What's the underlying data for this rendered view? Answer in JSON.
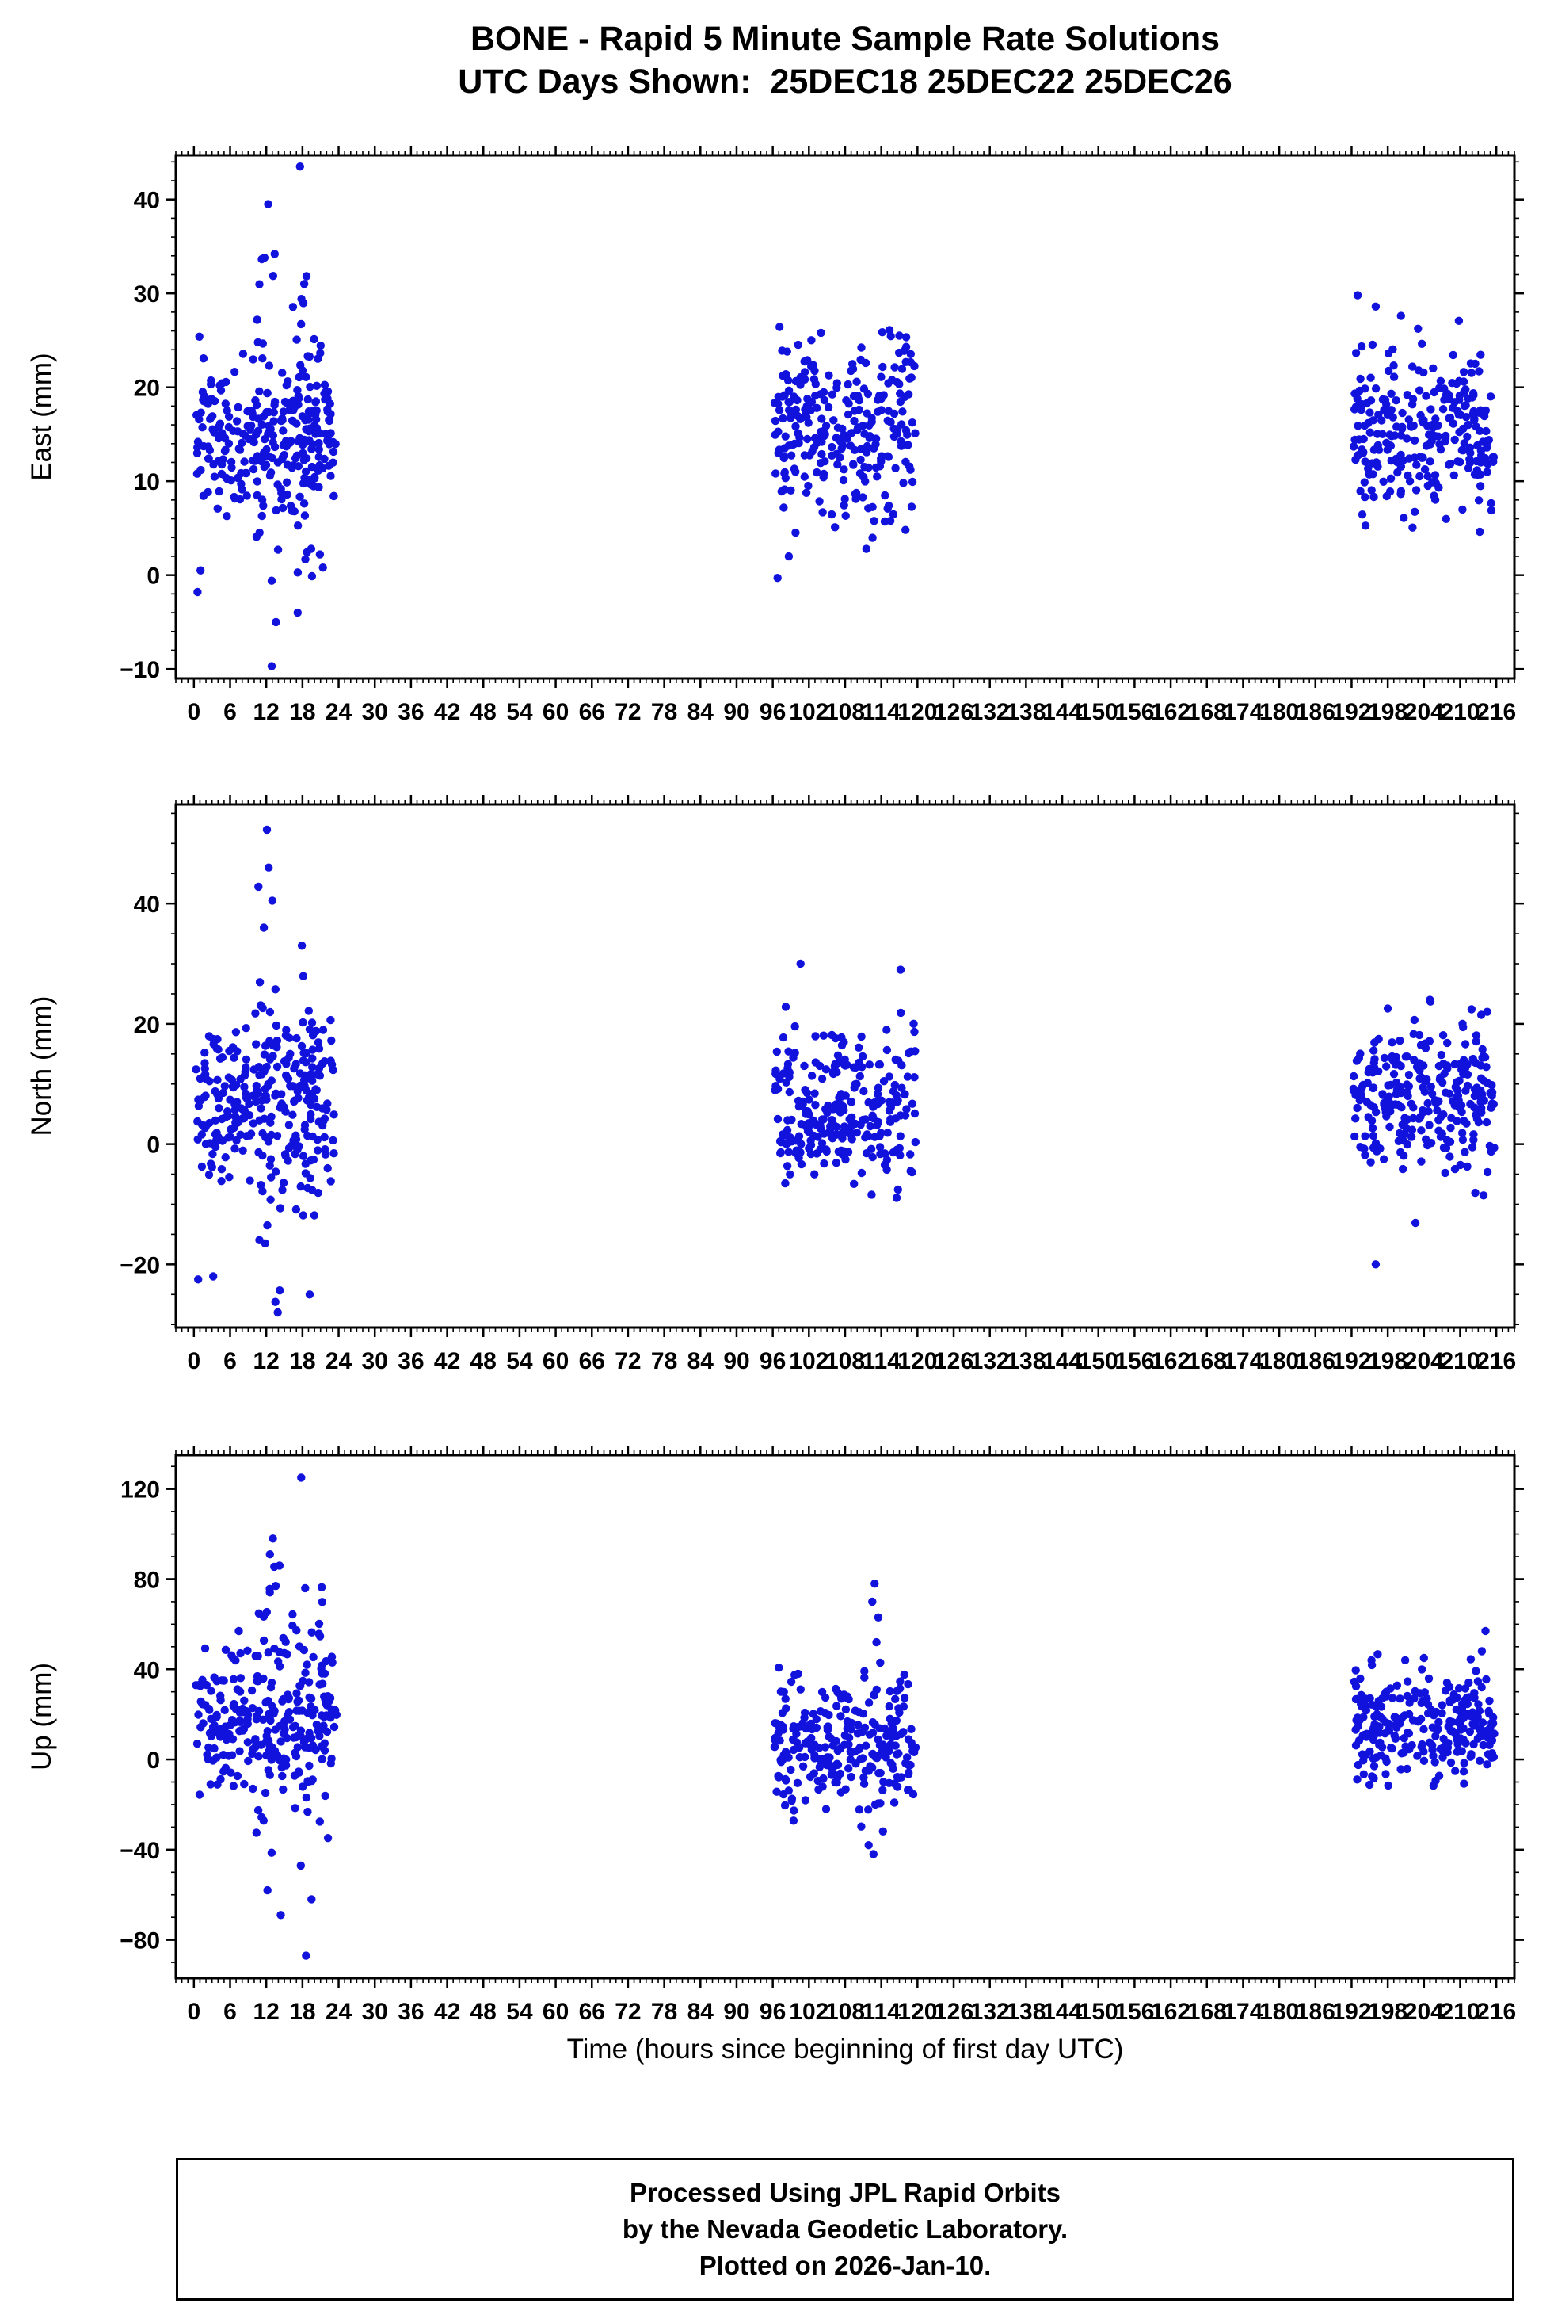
{
  "title": {
    "line1": "BONE - Rapid 5 Minute Sample Rate Solutions",
    "line2": "UTC Days Shown:  25DEC18 25DEC22 25DEC26"
  },
  "xaxis": {
    "label": "Time (hours since beginning of first day UTC)",
    "ticks": [
      0,
      6,
      12,
      18,
      24,
      30,
      36,
      42,
      48,
      54,
      60,
      66,
      72,
      78,
      84,
      90,
      96,
      102,
      108,
      114,
      120,
      126,
      132,
      138,
      144,
      150,
      156,
      162,
      168,
      174,
      180,
      186,
      192,
      198,
      204,
      210,
      216
    ],
    "minor_step": 1,
    "range": [
      -3,
      219
    ]
  },
  "footer": {
    "line1": "Processed Using JPL Rapid Orbits",
    "line2": "by the Nevada Geodetic Laboratory.",
    "line3": "Plotted on 2026-Jan-10."
  },
  "style": {
    "dot_color": "#1212dd",
    "dot_radius": 5.2,
    "axis_color": "#000000",
    "background": "#ffffff"
  },
  "chart_data": [
    {
      "type": "scatter",
      "series_name": "East",
      "ylabel": "East (mm)",
      "ylim": [
        -11,
        44.7
      ],
      "yticks": [
        -10,
        0,
        10,
        20,
        30,
        40
      ],
      "y_minor_step": 2,
      "xlim": [
        -3,
        219
      ],
      "seed": 11,
      "clusters": [
        {
          "x0": 0.3,
          "x1": 23.7,
          "n": 250,
          "mean": 14.5,
          "std": 4.4,
          "ymin": -2.5,
          "ymax": 27
        },
        {
          "x0": 10.2,
          "x1": 14.3,
          "n": 26,
          "mean": 17,
          "std": 10,
          "ymin": -10,
          "ymax": 40
        },
        {
          "x0": 16.3,
          "x1": 20.3,
          "n": 26,
          "mean": 15,
          "std": 10,
          "ymin": -8,
          "ymax": 43.5
        },
        {
          "x0": 96.3,
          "x1": 119.7,
          "n": 260,
          "mean": 15,
          "std": 4.8,
          "ymin": -0.5,
          "ymax": 26.5
        },
        {
          "x0": 192.3,
          "x1": 215.7,
          "n": 260,
          "mean": 15.2,
          "std": 4.6,
          "ymin": 4,
          "ymax": 30
        }
      ],
      "extra_points": [
        [
          12.3,
          39.5
        ],
        [
          13.4,
          34.2
        ],
        [
          11.7,
          33.8
        ],
        [
          17.6,
          43.5
        ],
        [
          18.3,
          31
        ],
        [
          12.9,
          -9.7
        ],
        [
          13.6,
          -5
        ],
        [
          17.2,
          -4
        ],
        [
          0.6,
          -1.8
        ],
        [
          1.1,
          0.5
        ],
        [
          20.9,
          2.2
        ],
        [
          21.4,
          0.8
        ],
        [
          96.8,
          -0.3
        ],
        [
          104,
          25.8
        ],
        [
          117,
          25.5
        ],
        [
          193,
          29.8
        ],
        [
          196,
          28.6
        ]
      ]
    },
    {
      "type": "scatter",
      "series_name": "North",
      "ylabel": "North (mm)",
      "ylim": [
        -30.5,
        56.5
      ],
      "yticks": [
        -20,
        0,
        20,
        40
      ],
      "y_minor_step": 5,
      "xlim": [
        -3,
        219
      ],
      "seed": 22,
      "clusters": [
        {
          "x0": 0.3,
          "x1": 23.7,
          "n": 250,
          "mean": 7,
          "std": 7,
          "ymin": -14,
          "ymax": 22
        },
        {
          "x0": 10.2,
          "x1": 14.5,
          "n": 26,
          "mean": 8,
          "std": 18,
          "ymin": -28,
          "ymax": 52
        },
        {
          "x0": 16.3,
          "x1": 20.8,
          "n": 24,
          "mean": 2,
          "std": 15,
          "ymin": -31,
          "ymax": 33
        },
        {
          "x0": 96.3,
          "x1": 119.7,
          "n": 260,
          "mean": 6,
          "std": 6.5,
          "ymin": -13,
          "ymax": 24
        },
        {
          "x0": 192.3,
          "x1": 215.7,
          "n": 260,
          "mean": 8,
          "std": 6,
          "ymin": -18,
          "ymax": 24
        }
      ],
      "extra_points": [
        [
          12.1,
          52.3
        ],
        [
          12.4,
          46
        ],
        [
          13,
          40.5
        ],
        [
          11.6,
          36
        ],
        [
          17.9,
          33
        ],
        [
          13.9,
          -28
        ],
        [
          13.4,
          -31.2
        ],
        [
          19.2,
          -25
        ],
        [
          0.7,
          -22.5
        ],
        [
          3.2,
          -22
        ],
        [
          100.6,
          30
        ],
        [
          117.2,
          29
        ],
        [
          196,
          -20
        ],
        [
          213.5,
          21.5
        ],
        [
          205,
          24
        ],
        [
          214.5,
          22
        ]
      ]
    },
    {
      "type": "scatter",
      "series_name": "Up",
      "ylabel": "Up (mm)",
      "ylim": [
        -97,
        135
      ],
      "yticks": [
        -80,
        -40,
        0,
        40,
        80,
        120
      ],
      "y_minor_step": 10,
      "xlim": [
        -3,
        219
      ],
      "seed": 33,
      "clusters": [
        {
          "x0": 0.3,
          "x1": 23.7,
          "n": 240,
          "mean": 18,
          "std": 16,
          "ymin": -26,
          "ymax": 60
        },
        {
          "x0": 10.2,
          "x1": 15.2,
          "n": 28,
          "mean": 28,
          "std": 38,
          "ymin": -65,
          "ymax": 98
        },
        {
          "x0": 16.3,
          "x1": 22.3,
          "n": 28,
          "mean": 5,
          "std": 45,
          "ymin": -87,
          "ymax": 125
        },
        {
          "x0": 96.3,
          "x1": 119.7,
          "n": 260,
          "mean": 7,
          "std": 14,
          "ymin": -35,
          "ymax": 45
        },
        {
          "x0": 192.3,
          "x1": 215.7,
          "n": 260,
          "mean": 15,
          "std": 12,
          "ymin": -22,
          "ymax": 48
        }
      ],
      "extra_points": [
        [
          17.8,
          125
        ],
        [
          13.1,
          98
        ],
        [
          12.6,
          91
        ],
        [
          14.2,
          86
        ],
        [
          18.6,
          -87
        ],
        [
          14.4,
          -69
        ],
        [
          12.2,
          -58
        ],
        [
          19.5,
          -62
        ],
        [
          112.9,
          78
        ],
        [
          112.5,
          70
        ],
        [
          113.5,
          63
        ],
        [
          113.2,
          52
        ],
        [
          112.7,
          -42
        ],
        [
          111.9,
          -38
        ],
        [
          100.2,
          38
        ],
        [
          214.2,
          57
        ],
        [
          213.6,
          48
        ],
        [
          195.3,
          44
        ],
        [
          204,
          45
        ]
      ]
    }
  ]
}
